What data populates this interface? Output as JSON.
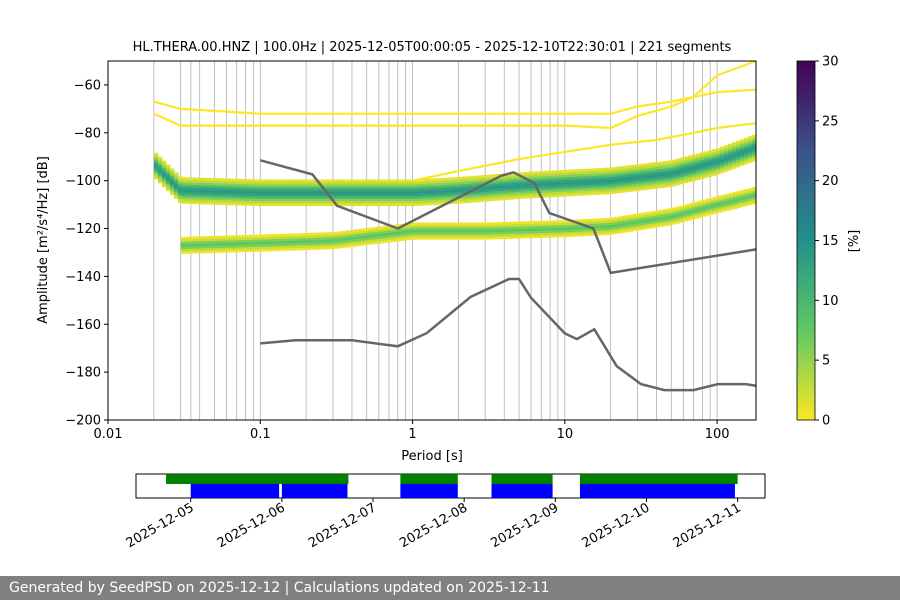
{
  "chart_data": {
    "type": "heatmap",
    "title": "HL.THERA.00.HNZ | 100.0Hz | 2025-12-05T00:00:05 - 2025-12-10T22:30:01 | 221 segments",
    "xlabel": "Period [s]",
    "ylabel": "Amplitude [m²/s⁴/Hz] [dB]",
    "xscale": "log",
    "xlim": [
      0.01,
      180
    ],
    "ylim": [
      -200,
      -50
    ],
    "xtick_labels": [
      {
        "v": 0.01,
        "t": "0.01"
      },
      {
        "v": 0.1,
        "t": "0.1"
      },
      {
        "v": 1,
        "t": "1"
      },
      {
        "v": 10,
        "t": "10"
      },
      {
        "v": 100,
        "t": "100"
      }
    ],
    "yticks": [
      -200,
      -180,
      -160,
      -140,
      -120,
      -100,
      -80,
      -60
    ],
    "ytick_labels": [
      "−200",
      "−180",
      "−160",
      "−140",
      "−120",
      "−100",
      "−80",
      "−60"
    ],
    "grid_x": [
      0.02,
      0.03,
      0.035,
      0.04,
      0.05,
      0.06,
      0.07,
      0.08,
      0.09,
      0.1,
      0.2,
      0.3,
      0.4,
      0.5,
      0.6,
      0.7,
      0.8,
      0.9,
      1,
      2,
      3,
      4,
      5,
      6,
      7,
      8,
      9,
      10,
      20,
      30,
      40,
      50,
      60,
      70,
      80,
      90,
      100
    ],
    "nlnm": [
      [
        0.1,
        -168
      ],
      [
        0.17,
        -166.7
      ],
      [
        0.4,
        -166.7
      ],
      [
        0.8,
        -169.2
      ],
      [
        1.24,
        -163.7
      ],
      [
        2.4,
        -148.6
      ],
      [
        4.3,
        -141.1
      ],
      [
        5.0,
        -141.1
      ],
      [
        6.0,
        -149
      ],
      [
        10,
        -163.8
      ],
      [
        12,
        -166.2
      ],
      [
        15.6,
        -162.1
      ],
      [
        21.9,
        -177.5
      ],
      [
        31.6,
        -185
      ],
      [
        45,
        -187.5
      ],
      [
        70,
        -187.5
      ],
      [
        101,
        -185
      ],
      [
        154,
        -185
      ],
      [
        180,
        -185.7
      ]
    ],
    "nhnm": [
      [
        0.1,
        -91.5
      ],
      [
        0.22,
        -97.4
      ],
      [
        0.32,
        -110.5
      ],
      [
        0.8,
        -120
      ],
      [
        3.8,
        -98
      ],
      [
        4.6,
        -96.5
      ],
      [
        6.3,
        -101
      ],
      [
        7.9,
        -113.5
      ],
      [
        15.4,
        -120
      ],
      [
        20,
        -138.5
      ],
      [
        180,
        -128.7
      ]
    ],
    "psd_bands": [
      {
        "name": "main-band",
        "pts": [
          [
            0.02,
            -93
          ],
          [
            0.03,
            -104
          ],
          [
            0.1,
            -105
          ],
          [
            0.5,
            -105
          ],
          [
            1,
            -105
          ],
          [
            2,
            -104
          ],
          [
            5,
            -102
          ],
          [
            10,
            -101
          ],
          [
            20,
            -100
          ],
          [
            50,
            -97
          ],
          [
            100,
            -92
          ],
          [
            180,
            -86
          ]
        ],
        "half": 5,
        "peak": 14
      },
      {
        "name": "lower-band",
        "pts": [
          [
            0.03,
            -127
          ],
          [
            0.1,
            -126
          ],
          [
            0.3,
            -125
          ],
          [
            1,
            -121
          ],
          [
            3,
            -121
          ],
          [
            10,
            -120
          ],
          [
            20,
            -119
          ],
          [
            50,
            -115
          ],
          [
            100,
            -110
          ],
          [
            180,
            -106
          ]
        ],
        "half": 3,
        "peak": 8
      }
    ],
    "lines_yellow": [
      {
        "name": "upper-line-1",
        "pts": [
          [
            0.02,
            -67
          ],
          [
            0.03,
            -70
          ],
          [
            0.1,
            -72
          ],
          [
            1,
            -72
          ],
          [
            10,
            -72
          ],
          [
            20,
            -72
          ],
          [
            30,
            -69
          ],
          [
            50,
            -67
          ],
          [
            100,
            -63
          ],
          [
            180,
            -62
          ]
        ]
      },
      {
        "name": "upper-line-2",
        "pts": [
          [
            0.02,
            -72
          ],
          [
            0.03,
            -77
          ],
          [
            0.1,
            -77
          ],
          [
            1,
            -77
          ],
          [
            10,
            -77
          ],
          [
            20,
            -78
          ],
          [
            30,
            -73
          ],
          [
            50,
            -69
          ],
          [
            70,
            -65
          ],
          [
            100,
            -56
          ],
          [
            180,
            -50
          ]
        ]
      },
      {
        "name": "rising-line",
        "pts": [
          [
            1,
            -100
          ],
          [
            2,
            -96
          ],
          [
            5,
            -91
          ],
          [
            10,
            -88
          ],
          [
            20,
            -85
          ],
          [
            40,
            -83
          ],
          [
            70,
            -80
          ],
          [
            100,
            -78
          ],
          [
            180,
            -76
          ]
        ]
      }
    ],
    "colorbar": {
      "label": "[%]",
      "min": 0,
      "max": 30,
      "ticks": [
        0,
        5,
        10,
        15,
        20,
        25,
        30
      ],
      "colors": [
        "#fde725",
        "#5ec962",
        "#21918c",
        "#3b528b",
        "#440154"
      ]
    },
    "timeline": {
      "tick_labels": [
        "2025-12-05",
        "2025-12-06",
        "2025-12-07",
        "2025-12-08",
        "2025-12-09",
        "2025-12-10",
        "2025-12-11"
      ],
      "range": [
        -0.6,
        6.3
      ],
      "green_segments": [
        [
          -0.27,
          1.73
        ],
        [
          2.3,
          2.93
        ],
        [
          3.3,
          3.97
        ],
        [
          4.27,
          6.0
        ]
      ],
      "blue_segments": [
        [
          0.0,
          0.97
        ],
        [
          1.0,
          1.72
        ],
        [
          2.3,
          2.93
        ],
        [
          3.3,
          3.97
        ],
        [
          4.27,
          5.97
        ]
      ],
      "green_color": "#008000",
      "blue_color": "#0000ff"
    }
  },
  "footer": {
    "text": "Generated by SeedPSD on 2025-12-12 | Calculations updated on 2025-12-11"
  }
}
